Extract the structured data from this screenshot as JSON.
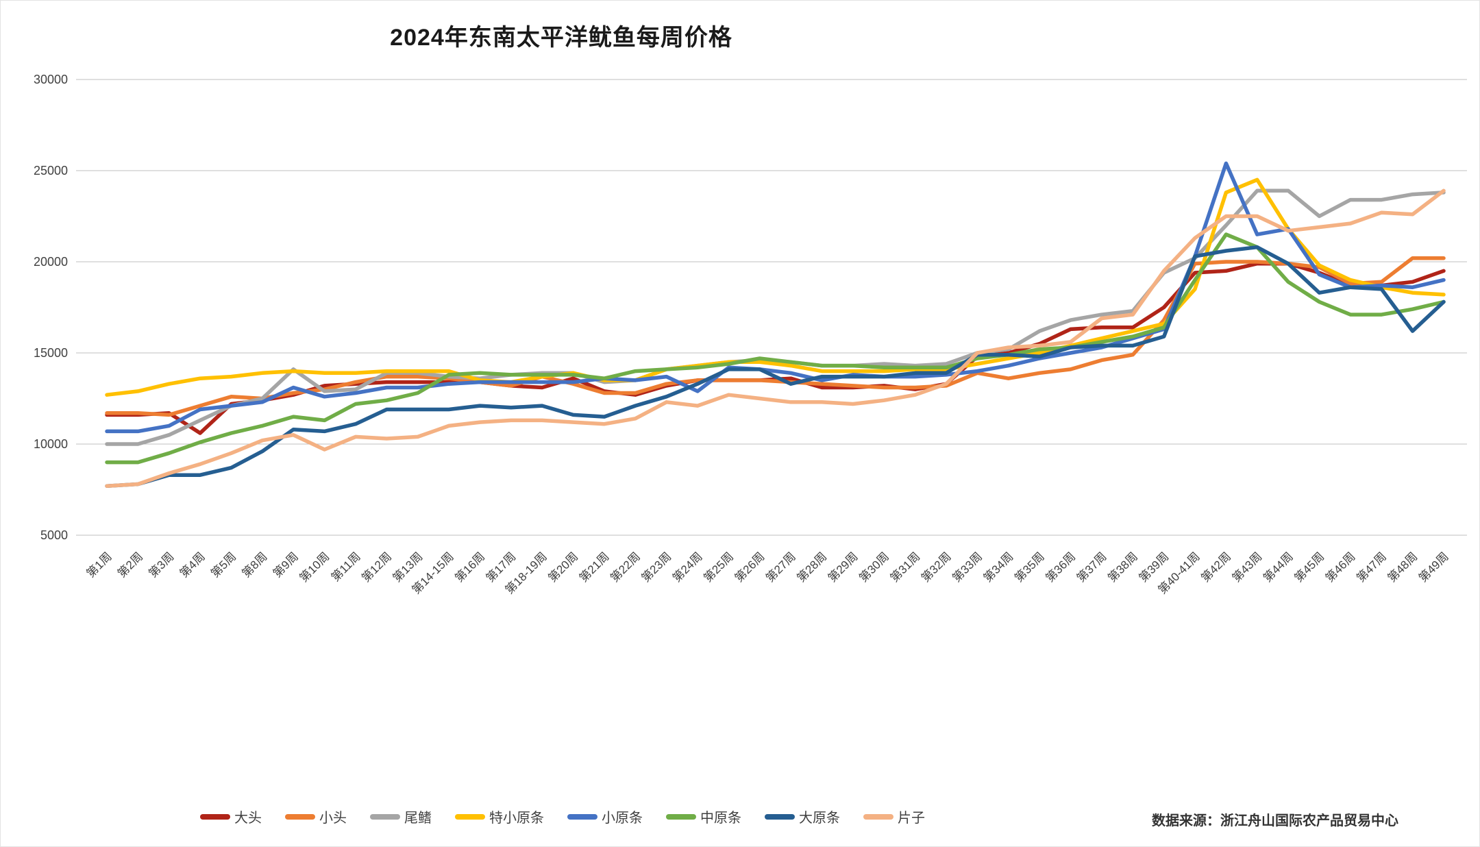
{
  "title": "2024年东南太平洋鱿鱼每周价格",
  "source_note": "数据来源：浙江舟山国际农产品贸易中心",
  "chart_data": {
    "type": "line",
    "title": "2024年东南太平洋鱿鱼每周价格",
    "xlabel": "",
    "ylabel": "",
    "ylim": [
      5000,
      30000
    ],
    "yticks": [
      5000,
      10000,
      15000,
      20000,
      25000,
      30000
    ],
    "grid": "horizontal",
    "legend_position": "bottom",
    "categories": [
      "第1周",
      "第2周",
      "第3周",
      "第4周",
      "第5周",
      "第8周",
      "第9周",
      "第10周",
      "第11周",
      "第12周",
      "第13周",
      "第14-15周",
      "第16周",
      "第17周",
      "第18-19周",
      "第20周",
      "第21周",
      "第22周",
      "第23周",
      "第24周",
      "第25周",
      "第26周",
      "第27周",
      "第28周",
      "第29周",
      "第30周",
      "第31周",
      "第32周",
      "第33周",
      "第34周",
      "第35周",
      "第36周",
      "第37周",
      "第38周",
      "第39周",
      "第40-41周",
      "第42周",
      "第43周",
      "第44周",
      "第45周",
      "第46周",
      "第47周",
      "第48周",
      "第49周"
    ],
    "series": [
      {
        "name": "大头",
        "color": "#b02418",
        "values": [
          11600,
          11600,
          11700,
          10600,
          12200,
          12400,
          12700,
          13200,
          13300,
          13400,
          13400,
          13400,
          13400,
          13200,
          13100,
          13600,
          12900,
          12700,
          13200,
          13500,
          13500,
          13500,
          13600,
          13100,
          13100,
          13200,
          13000,
          13300,
          14800,
          15000,
          15500,
          16300,
          16400,
          16400,
          17500,
          19400,
          19500,
          19900,
          19900,
          19400,
          18700,
          18700,
          18900,
          19500
        ]
      },
      {
        "name": "小头",
        "color": "#ed7d31",
        "values": [
          11700,
          11700,
          11600,
          12100,
          12600,
          12500,
          12800,
          13000,
          13400,
          13700,
          13700,
          13600,
          13400,
          13200,
          13700,
          13300,
          12800,
          12800,
          13300,
          13500,
          13500,
          13500,
          13400,
          13300,
          13200,
          13100,
          13100,
          13200,
          13900,
          13600,
          13900,
          14100,
          14600,
          14900,
          16800,
          19900,
          20000,
          20000,
          19900,
          19700,
          18800,
          18900,
          20200,
          20200
        ]
      },
      {
        "name": "尾鳍",
        "color": "#a5a5a5",
        "values": [
          10000,
          10000,
          10500,
          11300,
          12100,
          12500,
          14100,
          12900,
          13000,
          13900,
          13900,
          13700,
          13600,
          13800,
          13900,
          13900,
          13400,
          13500,
          14100,
          14300,
          14500,
          14600,
          14500,
          14300,
          14300,
          14400,
          14300,
          14400,
          15000,
          15200,
          16200,
          16800,
          17100,
          17300,
          19400,
          20200,
          22000,
          23900,
          23900,
          22500,
          23400,
          23400,
          23700,
          23800
        ]
      },
      {
        "name": "特小原条",
        "color": "#ffc000",
        "values": [
          12700,
          12900,
          13300,
          13600,
          13700,
          13900,
          14000,
          13900,
          13900,
          14000,
          14000,
          14000,
          13500,
          13400,
          13700,
          13900,
          13500,
          13500,
          14100,
          14300,
          14500,
          14500,
          14300,
          14000,
          14000,
          14000,
          14100,
          14100,
          14400,
          14700,
          15000,
          15400,
          15800,
          16200,
          16600,
          18500,
          23800,
          24500,
          21800,
          19800,
          19000,
          18600,
          18300,
          18200
        ]
      },
      {
        "name": "小原条",
        "color": "#4472c4",
        "values": [
          10700,
          10700,
          11000,
          11900,
          12100,
          12300,
          13100,
          12600,
          12800,
          13100,
          13100,
          13300,
          13400,
          13400,
          13400,
          13400,
          13600,
          13500,
          13700,
          12900,
          14200,
          14100,
          13900,
          13500,
          13800,
          13700,
          13700,
          13800,
          14000,
          14300,
          14700,
          15000,
          15300,
          15800,
          16300,
          20300,
          25400,
          21500,
          21800,
          19300,
          18600,
          18700,
          18600,
          19000
        ]
      },
      {
        "name": "中原条",
        "color": "#70ad47",
        "values": [
          9000,
          9000,
          9500,
          10100,
          10600,
          11000,
          11500,
          11300,
          12200,
          12400,
          12800,
          13800,
          13900,
          13800,
          13800,
          13800,
          13600,
          14000,
          14100,
          14200,
          14400,
          14700,
          14500,
          14300,
          14300,
          14200,
          14200,
          14200,
          14700,
          14900,
          15200,
          15300,
          15600,
          15900,
          16400,
          19000,
          21500,
          20800,
          18900,
          17800,
          17100,
          17100,
          17400,
          17800
        ]
      },
      {
        "name": "大原条",
        "color": "#255e91",
        "values": [
          7700,
          7800,
          8300,
          8300,
          8700,
          9600,
          10800,
          10700,
          11100,
          11900,
          11900,
          11900,
          12100,
          12000,
          12100,
          11600,
          11500,
          12100,
          12600,
          13300,
          14100,
          14100,
          13300,
          13700,
          13700,
          13700,
          13900,
          13900,
          14900,
          14900,
          14800,
          15300,
          15400,
          15400,
          15900,
          20300,
          20600,
          20800,
          19900,
          18300,
          18600,
          18500,
          16200,
          17800
        ]
      },
      {
        "name": "片子",
        "color": "#f4b183",
        "values": [
          7700,
          7800,
          8400,
          8900,
          9500,
          10200,
          10500,
          9700,
          10400,
          10300,
          10400,
          11000,
          11200,
          11300,
          11300,
          11200,
          11100,
          11400,
          12300,
          12100,
          12700,
          12500,
          12300,
          12300,
          12200,
          12400,
          12700,
          13300,
          15000,
          15300,
          15400,
          15600,
          16900,
          17100,
          19500,
          21300,
          22500,
          22500,
          21700,
          21900,
          22100,
          22700,
          22600,
          23900
        ]
      }
    ]
  }
}
